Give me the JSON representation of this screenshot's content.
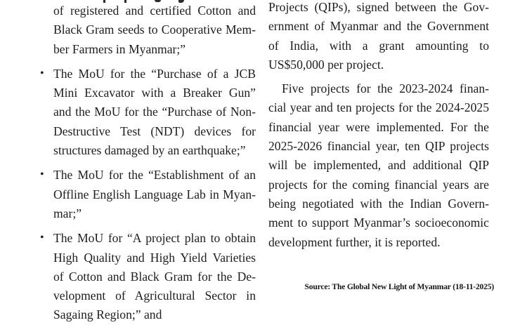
{
  "page": {
    "background_color": "#ffffff",
    "text_color": "#1d1d1d"
  },
  "left_column": {
    "bullet_char": "•",
    "items": [
      {
        "has_bullet": false,
        "lines": [
          "of registered and certified Cotton and",
          "Black Gram seeds to Cooperative Mem-",
          "ber Farmers in Myanmar;”"
        ]
      },
      {
        "has_bullet": true,
        "lines": [
          "The MoU for the “Purchase of a JCB",
          "Mini Excavator with a Breaker Gun”",
          "and the MoU for the “Purchase of Non-",
          "Destructive Test (NDT) devices for",
          "structures damaged by an earthquake;”"
        ]
      },
      {
        "has_bullet": true,
        "lines": [
          "The MoU for the “Establishment of an",
          "Offline English Language Lab in Myan-",
          "mar;”"
        ]
      },
      {
        "has_bullet": true,
        "lines": [
          "The MoU for “A project plan to obtain",
          "High Quality and High Yield Varieties",
          "of Cotton and Black Gram for the De-",
          "velopment of Agricultural Sector in",
          "Sagaing Region;” and"
        ]
      }
    ]
  },
  "right_column": {
    "paragraphs": [
      {
        "first_line_indented": false,
        "lines": [
          "Projects (QIPs), signed between the Gov-",
          "ernment of Myanmar and the Government",
          "of India, with a grant amounting to",
          "US$50,000 per project."
        ]
      },
      {
        "first_line_indented": true,
        "lines": [
          "Five projects for the 2023-2024 finan-",
          "cial year and ten projects for the 2024-2025",
          "financial year were implemented. For the",
          "2025-2026 financial year, ten QIP projects",
          "will be implemented, and additional QIP",
          "projects for the coming financial years are",
          "being negotiated with the Indian Govern-",
          "ment to support Myanmar’s socioeconomic",
          "development further, it is reported."
        ]
      }
    ],
    "source": "Source: The Global New Light of Myanmar (18-11-2025)"
  }
}
